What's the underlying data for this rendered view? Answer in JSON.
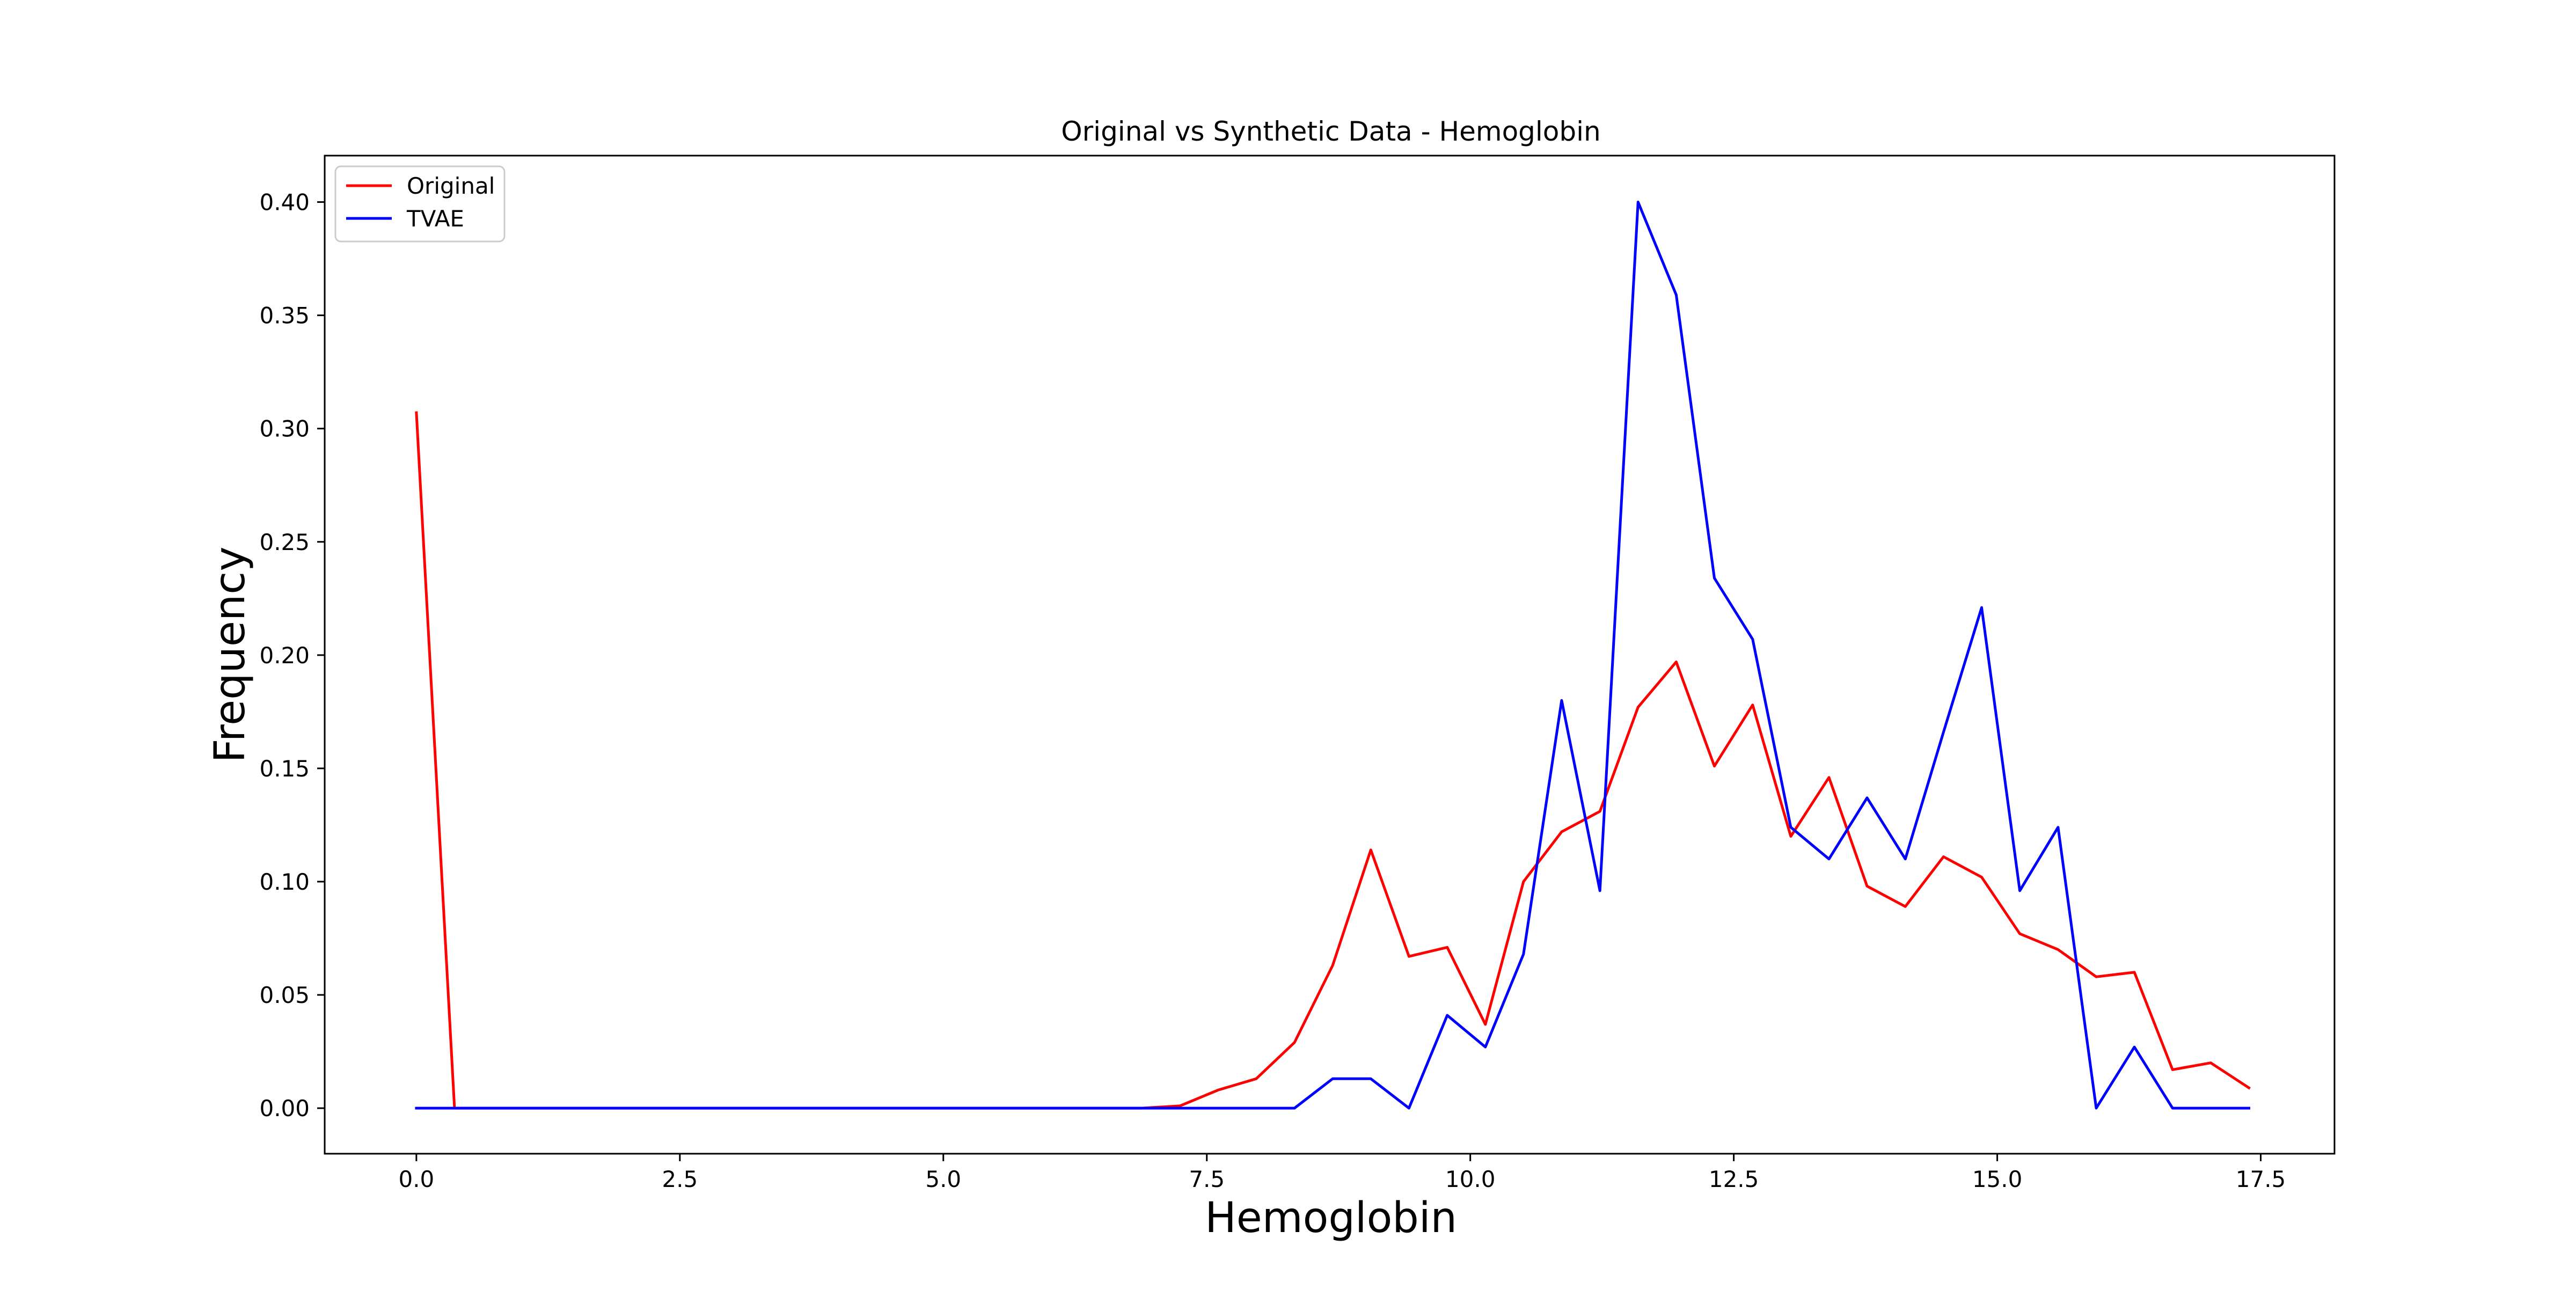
{
  "chart_data": {
    "type": "line",
    "title": "Original vs Synthetic Data - Hemoglobin",
    "xlabel": "Hemoglobin",
    "ylabel": "Frequency",
    "xlim": [
      -0.87,
      18.2
    ],
    "ylim": [
      -0.0201,
      0.4205
    ],
    "x_ticks": [
      0.0,
      2.5,
      5.0,
      7.5,
      10.0,
      12.5,
      15.0,
      17.5
    ],
    "x_tick_labels": [
      "0.0",
      "2.5",
      "5.0",
      "7.5",
      "10.0",
      "12.5",
      "15.0",
      "17.5"
    ],
    "y_ticks": [
      0.0,
      0.05,
      0.1,
      0.15,
      0.2,
      0.25,
      0.3,
      0.35,
      0.4
    ],
    "y_tick_labels": [
      "0.00",
      "0.05",
      "0.10",
      "0.15",
      "0.20",
      "0.25",
      "0.30",
      "0.35",
      "0.40"
    ],
    "grid": false,
    "legend_position": "top-left",
    "x": [
      0.0,
      0.362,
      0.724,
      1.087,
      1.449,
      1.811,
      2.173,
      2.536,
      2.898,
      3.26,
      3.622,
      3.985,
      4.347,
      4.709,
      5.071,
      5.434,
      5.796,
      6.158,
      6.52,
      6.883,
      7.245,
      7.607,
      7.969,
      8.332,
      8.694,
      9.056,
      9.418,
      9.781,
      10.143,
      10.505,
      10.867,
      11.23,
      11.592,
      11.954,
      12.316,
      12.679,
      13.041,
      13.403,
      13.765,
      14.128,
      14.49,
      14.852,
      15.214,
      15.577,
      15.939,
      16.301,
      16.663,
      17.026,
      17.388
    ],
    "series": [
      {
        "name": "Original",
        "color": "#ff0000",
        "values": [
          0.307,
          0.0,
          0.0,
          0.0,
          0.0,
          0.0,
          0.0,
          0.0,
          0.0,
          0.0,
          0.0,
          0.0,
          0.0,
          0.0,
          0.0,
          0.0,
          0.0,
          0.0,
          0.0,
          0.0,
          0.001,
          0.008,
          0.013,
          0.029,
          0.063,
          0.114,
          0.067,
          0.071,
          0.037,
          0.1,
          0.122,
          0.131,
          0.177,
          0.197,
          0.151,
          0.178,
          0.12,
          0.146,
          0.098,
          0.089,
          0.111,
          0.102,
          0.077,
          0.07,
          0.058,
          0.06,
          0.017,
          0.02,
          0.009
        ]
      },
      {
        "name": "TVAE",
        "color": "#0000ff",
        "values": [
          0.0,
          0.0,
          0.0,
          0.0,
          0.0,
          0.0,
          0.0,
          0.0,
          0.0,
          0.0,
          0.0,
          0.0,
          0.0,
          0.0,
          0.0,
          0.0,
          0.0,
          0.0,
          0.0,
          0.0,
          0.0,
          0.0,
          0.0,
          0.0,
          0.013,
          0.013,
          0.0,
          0.041,
          0.027,
          0.068,
          0.18,
          0.096,
          0.4,
          0.359,
          0.234,
          0.207,
          0.124,
          0.11,
          0.137,
          0.11,
          0.166,
          0.221,
          0.096,
          0.124,
          0.0,
          0.027,
          0.0,
          0.0,
          0.0
        ]
      }
    ]
  }
}
